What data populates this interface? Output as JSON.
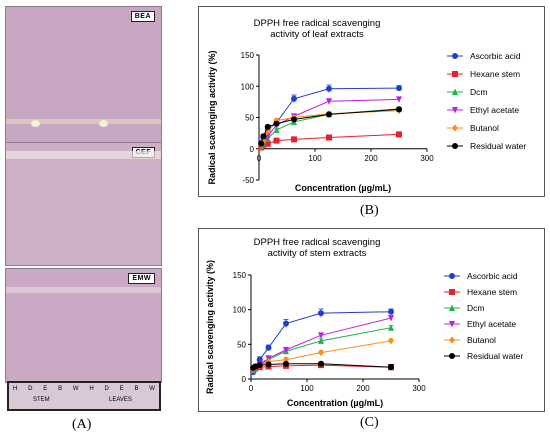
{
  "panel_labels": {
    "a": "(A)",
    "b": "(B)",
    "c": "(C)"
  },
  "tlc": {
    "strips": [
      {
        "label": "BEA"
      },
      {
        "label": "CEF"
      },
      {
        "label": "EMW"
      }
    ],
    "lane_letters": [
      "H",
      "D",
      "E",
      "B",
      "W",
      "H",
      "D",
      "E",
      "B",
      "W"
    ],
    "groups": [
      "STEM",
      "LEAVES"
    ],
    "colors": {
      "plate": "#c7a7c2",
      "plate_dark": "#b892b2",
      "spot": "#f0ead6"
    }
  },
  "chart_data": [
    {
      "type": "line",
      "title": [
        "DPPH free radical scavenging",
        "activity of leaf extracts"
      ],
      "xlabel": "Concentration (µg/mL)",
      "ylabel": "Radical scavenging activity (%)",
      "xlim": [
        0,
        300
      ],
      "ylim": [
        -50,
        150
      ],
      "xticks": [
        0,
        100,
        200,
        300
      ],
      "yticks": [
        -50,
        0,
        50,
        100,
        150
      ],
      "legend_position": "right",
      "x": [
        3.9,
        7.8,
        15.6,
        31.25,
        62.5,
        125,
        250
      ],
      "series": [
        {
          "name": "Ascorbic acid",
          "color": "#1f3fcf",
          "marker": "circle",
          "values": [
            10,
            18,
            30,
            42,
            80,
            96,
            97
          ],
          "err": [
            3,
            3,
            4,
            4,
            6,
            6,
            4
          ]
        },
        {
          "name": "Hexane stem",
          "color": "#e8202a",
          "marker": "square",
          "values": [
            2,
            5,
            8,
            13,
            15,
            18,
            23
          ],
          "err": [
            1,
            1,
            1,
            1,
            1,
            1,
            1
          ]
        },
        {
          "name": "Dcm",
          "color": "#22b14c",
          "marker": "triangle",
          "values": [
            3,
            6,
            16,
            30,
            43,
            55,
            64
          ],
          "err": [
            2,
            2,
            2,
            3,
            3,
            3,
            3
          ]
        },
        {
          "name": "Ethyl acetate",
          "color": "#c020e0",
          "marker": "triangle-down",
          "values": [
            5,
            8,
            20,
            38,
            52,
            76,
            79
          ],
          "err": [
            2,
            2,
            3,
            3,
            3,
            3,
            3
          ]
        },
        {
          "name": "Butanol",
          "color": "#ff8c1a",
          "marker": "diamond",
          "values": [
            6,
            12,
            28,
            45,
            50,
            56,
            61
          ],
          "err": [
            2,
            2,
            3,
            3,
            3,
            3,
            3
          ]
        },
        {
          "name": "Residual water",
          "color": "#000000",
          "marker": "circle",
          "values": [
            8,
            20,
            35,
            40,
            47,
            55,
            63
          ],
          "err": [
            2,
            2,
            3,
            3,
            3,
            3,
            3
          ]
        }
      ]
    },
    {
      "type": "line",
      "title": [
        "DPPH free radical scavenging",
        "activity of stem extracts"
      ],
      "xlabel": "Concentration (µg/mL)",
      "ylabel": "Radical scavenging activity (%)",
      "xlim": [
        0,
        300
      ],
      "ylim": [
        0,
        150
      ],
      "xticks": [
        0,
        100,
        200,
        300
      ],
      "yticks": [
        0,
        50,
        100,
        150
      ],
      "legend_position": "right",
      "x": [
        3.9,
        7.8,
        15.6,
        31.25,
        62.5,
        125,
        250
      ],
      "series": [
        {
          "name": "Ascorbic acid",
          "color": "#1f3fcf",
          "marker": "circle",
          "values": [
            10,
            18,
            28,
            45,
            80,
            95,
            97
          ],
          "err": [
            3,
            3,
            4,
            4,
            6,
            6,
            4
          ]
        },
        {
          "name": "Hexane stem",
          "color": "#e8202a",
          "marker": "square",
          "values": [
            14,
            16,
            17,
            18,
            19,
            20,
            17
          ],
          "err": [
            2,
            2,
            2,
            2,
            2,
            2,
            2
          ]
        },
        {
          "name": "Dcm",
          "color": "#22b14c",
          "marker": "triangle",
          "values": [
            12,
            15,
            20,
            28,
            40,
            55,
            74
          ],
          "err": [
            2,
            2,
            2,
            3,
            3,
            3,
            3
          ]
        },
        {
          "name": "Ethyl acetate",
          "color": "#c020e0",
          "marker": "triangle-down",
          "values": [
            12,
            15,
            21,
            30,
            42,
            63,
            88
          ],
          "err": [
            2,
            2,
            3,
            3,
            3,
            3,
            3
          ]
        },
        {
          "name": "Butanol",
          "color": "#ff8c1a",
          "marker": "diamond",
          "values": [
            14,
            17,
            20,
            25,
            28,
            38,
            55
          ],
          "err": [
            2,
            2,
            2,
            3,
            3,
            3,
            3
          ]
        },
        {
          "name": "Residual water",
          "color": "#000000",
          "marker": "circle",
          "values": [
            16,
            18,
            20,
            21,
            22,
            22,
            17
          ],
          "err": [
            2,
            2,
            2,
            2,
            2,
            2,
            4
          ]
        }
      ]
    }
  ]
}
